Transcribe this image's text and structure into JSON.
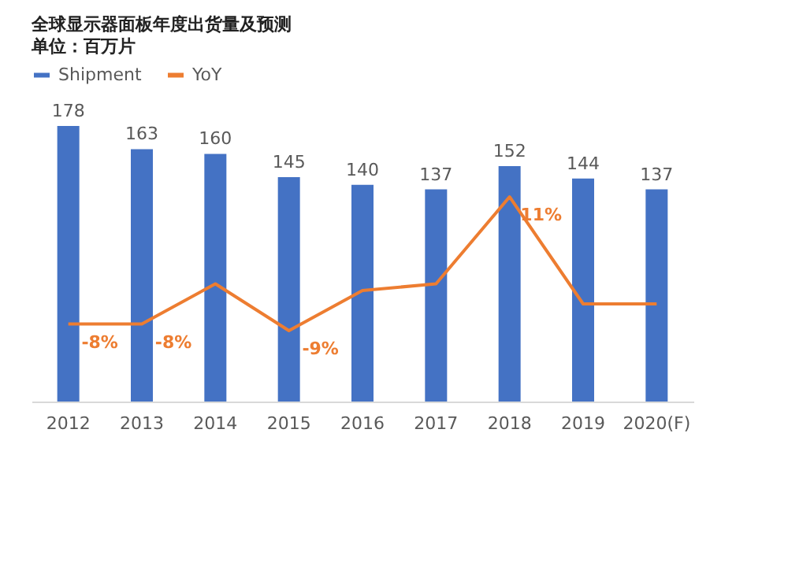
{
  "chart_data": {
    "type": "bar",
    "title": "全球显示器面板年度出货量及预测",
    "subtitle": "单位：百万片",
    "categories": [
      "2012",
      "2013",
      "2014",
      "2015",
      "2016",
      "2017",
      "2018",
      "2019",
      "2020(F)"
    ],
    "series": [
      {
        "name": "Shipment",
        "color": "#4472c4",
        "values": [
          178,
          163,
          160,
          145,
          140,
          137,
          152,
          144,
          137
        ]
      },
      {
        "name": "YoY",
        "type": "line",
        "axis": "y2",
        "color": "#ed7d31",
        "values": [
          -8,
          -8,
          -2,
          -9,
          -3,
          -2,
          11,
          -5,
          -5
        ],
        "value_labels": [
          "-8%",
          "-8%",
          null,
          "-9%",
          null,
          null,
          "11%",
          null,
          null
        ]
      }
    ],
    "data_labels": true,
    "tick_labels": "x",
    "legend": "top",
    "grid": false,
    "marker": "none"
  }
}
